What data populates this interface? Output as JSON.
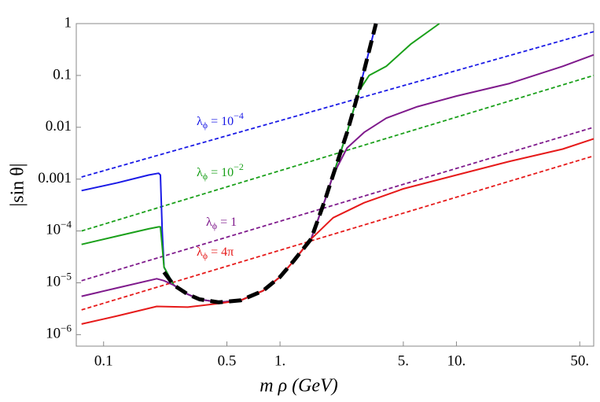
{
  "chart_data": {
    "type": "line",
    "xlabel": "m ρ (GeV)",
    "ylabel": "|sin θ|",
    "xscale": "log",
    "yscale": "log",
    "xlim": [
      0.07,
      60
    ],
    "ylim": [
      6e-07,
      1
    ],
    "xticks": [
      0.1,
      0.5,
      {
        "value": 1,
        "label": "1."
      },
      {
        "value": 5,
        "label": "5."
      },
      {
        "value": 10,
        "label": "10."
      },
      {
        "value": 50,
        "label": "50."
      }
    ],
    "yticks": [
      1,
      0.1,
      0.01,
      0.001,
      {
        "value": 0.0001,
        "label": "10−4"
      },
      {
        "value": 1e-05,
        "label": "10−5"
      },
      {
        "value": 1e-06,
        "label": "10−6"
      }
    ],
    "series": [
      {
        "color": "#1a1ae6",
        "dash": "dashed",
        "x": [
          0.075,
          60
        ],
        "values": [
          0.0011,
          0.7
        ]
      },
      {
        "color": "#1aa01a",
        "dash": "dashed",
        "x": [
          0.075,
          60
        ],
        "values": [
          0.0001,
          0.1
        ]
      },
      {
        "color": "#7f1a8c",
        "dash": "dashed",
        "x": [
          0.075,
          60
        ],
        "values": [
          1.1e-05,
          0.01
        ]
      },
      {
        "color": "#e61a1a",
        "dash": "dashed",
        "x": [
          0.075,
          60
        ],
        "values": [
          3e-06,
          0.0028
        ]
      },
      {
        "color": "#1a1ae6",
        "dash": "solid",
        "x": [
          0.075,
          0.12,
          0.18,
          0.205,
          0.21,
          0.215,
          0.22,
          0.25,
          0.3,
          0.35,
          0.45,
          0.6,
          0.8,
          1.0,
          1.2,
          1.5,
          1.8,
          2.0,
          2.4,
          2.8,
          3.2,
          3.5
        ],
        "values": [
          0.0006,
          0.00085,
          0.0012,
          0.0013,
          0.0012,
          0.0001,
          2e-05,
          9e-06,
          6e-06,
          4.8e-06,
          4.2e-06,
          4.6e-06,
          7e-06,
          1.3e-05,
          2.7e-05,
          7e-05,
          0.0004,
          0.0012,
          0.008,
          0.05,
          0.3,
          1
        ]
      },
      {
        "color": "#1aa01a",
        "dash": "solid",
        "x": [
          0.075,
          0.12,
          0.18,
          0.205,
          0.21,
          0.215,
          0.22,
          0.25,
          0.3,
          0.35,
          0.45,
          0.6,
          0.8,
          1.0,
          1.2,
          1.5,
          1.8,
          2.0,
          2.4,
          2.8,
          3.2,
          4,
          5.5,
          8
        ],
        "values": [
          5.5e-05,
          8e-05,
          0.00011,
          0.00012,
          0.00012,
          5e-05,
          2e-05,
          9e-06,
          6e-06,
          4.8e-06,
          4.2e-06,
          4.6e-06,
          7e-06,
          1.3e-05,
          2.7e-05,
          7e-05,
          0.0004,
          0.0012,
          0.008,
          0.05,
          0.1,
          0.15,
          0.4,
          1
        ]
      },
      {
        "color": "#7f1a8c",
        "dash": "solid",
        "x": [
          0.075,
          0.12,
          0.2,
          0.22,
          0.25,
          0.3,
          0.35,
          0.45,
          0.6,
          0.8,
          1.0,
          1.2,
          1.5,
          1.8,
          2.0,
          2.4,
          3,
          4,
          6,
          10,
          20,
          40,
          60
        ],
        "values": [
          5.5e-06,
          8e-06,
          1.2e-05,
          1.1e-05,
          9e-06,
          6e-06,
          4.8e-06,
          4.2e-06,
          4.6e-06,
          7e-06,
          1.3e-05,
          2.7e-05,
          7e-05,
          0.0004,
          0.0012,
          0.004,
          0.008,
          0.015,
          0.025,
          0.04,
          0.07,
          0.15,
          0.25
        ]
      },
      {
        "color": "#e61a1a",
        "dash": "solid",
        "x": [
          0.075,
          0.12,
          0.2,
          0.3,
          0.45,
          0.6,
          0.8,
          1.0,
          1.2,
          1.5,
          2,
          3,
          5,
          10,
          20,
          40,
          60
        ],
        "values": [
          1.6e-06,
          2.3e-06,
          3.5e-06,
          3.4e-06,
          4e-06,
          4.6e-06,
          7e-06,
          1.3e-05,
          2.7e-05,
          7e-05,
          0.00018,
          0.00035,
          0.00065,
          0.0012,
          0.0022,
          0.0038,
          0.006
        ]
      },
      {
        "color": "#000000",
        "dash": "thick-dashed",
        "x": [
          0.22,
          0.25,
          0.3,
          0.35,
          0.45,
          0.6,
          0.8,
          1.0,
          1.2,
          1.5,
          1.8,
          2.0,
          2.4,
          2.8,
          3.2,
          3.5
        ],
        "values": [
          1.6e-05,
          9e-06,
          6e-06,
          4.8e-06,
          4.2e-06,
          4.6e-06,
          7e-06,
          1.3e-05,
          2.7e-05,
          7e-05,
          0.0004,
          0.0012,
          0.008,
          0.05,
          0.3,
          1
        ]
      }
    ],
    "annotations": [
      {
        "color": "#1a1ae6",
        "base": "λ",
        "sub": "ϕ",
        "rest": " = 10",
        "sup": "−4"
      },
      {
        "color": "#1aa01a",
        "base": "λ",
        "sub": "ϕ",
        "rest": " = 10",
        "sup": "−2"
      },
      {
        "color": "#7f1a8c",
        "base": "λ",
        "sub": "ϕ",
        "rest": " = 1"
      },
      {
        "color": "#e61a1a",
        "base": "λ",
        "sub": "ϕ",
        "rest": " = 4π"
      }
    ]
  }
}
